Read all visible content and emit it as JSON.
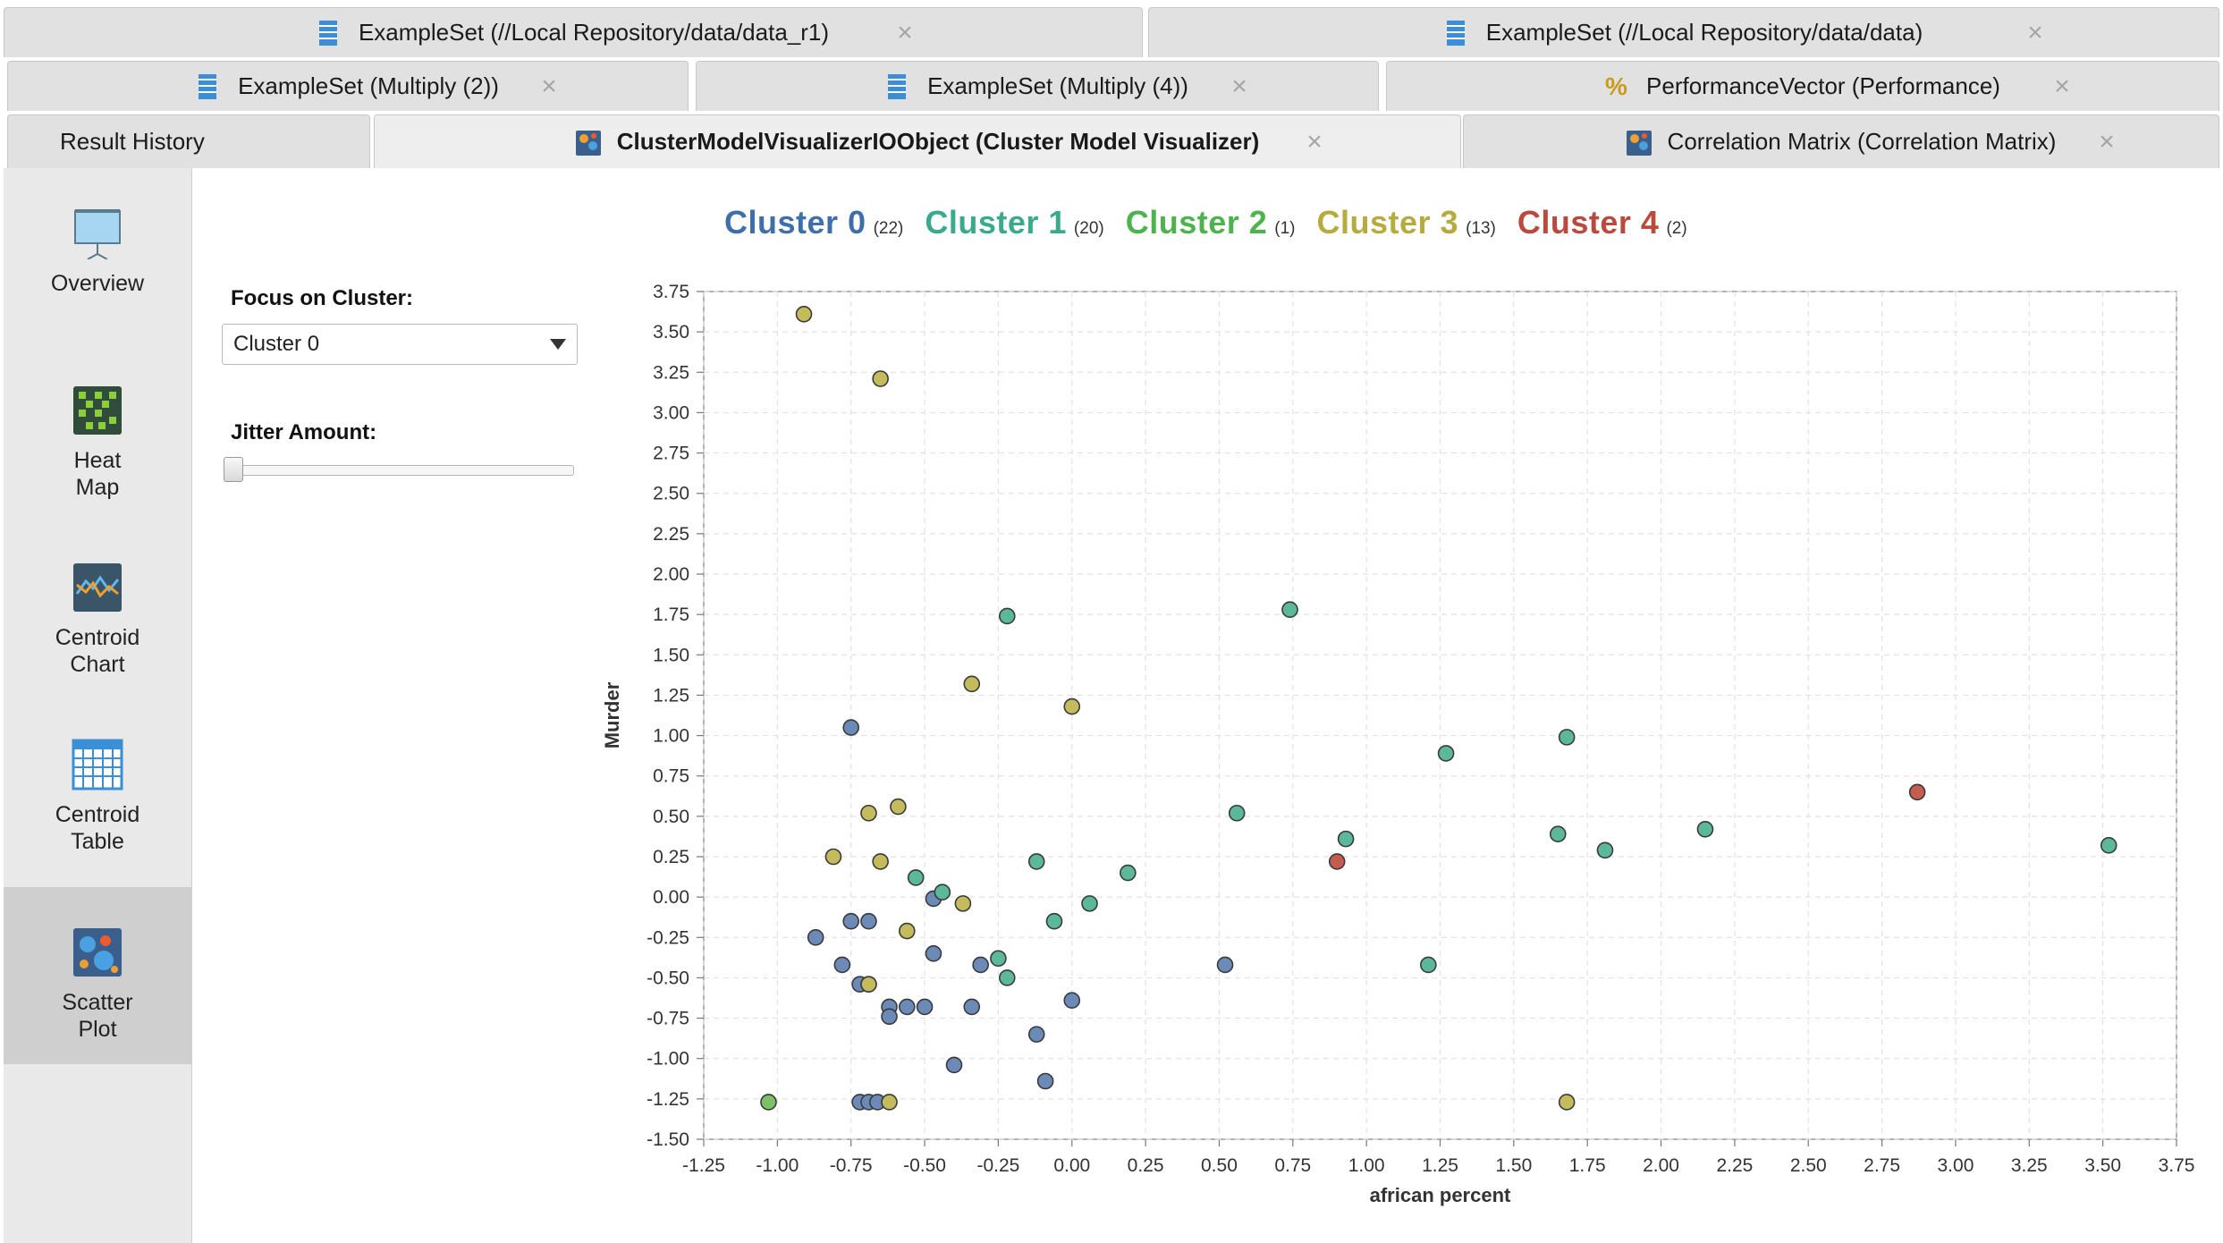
{
  "tabs": {
    "row1": [
      {
        "label": "ExampleSet (//Local Repository/data/data_r1)",
        "icon": "exampleset-icon",
        "close": "×"
      },
      {
        "label": "ExampleSet (//Local Repository/data/data)",
        "icon": "exampleset-icon",
        "close": "×"
      }
    ],
    "row2": [
      {
        "label": "ExampleSet (Multiply (2))",
        "icon": "exampleset-icon",
        "close": "×"
      },
      {
        "label": "ExampleSet (Multiply (4))",
        "icon": "exampleset-icon",
        "close": "×"
      },
      {
        "label": "PerformanceVector (Performance)",
        "icon": "percent-icon",
        "close": "×"
      }
    ],
    "row3": [
      {
        "label": "Result History"
      },
      {
        "label": "ClusterModelVisualizerIOObject (Cluster Model Visualizer)",
        "icon": "cluster-model-icon",
        "close": "×",
        "active": true
      },
      {
        "label": "Correlation Matrix (Correlation Matrix)",
        "icon": "correlation-matrix-icon",
        "close": "×"
      }
    ]
  },
  "sidebar": {
    "items": [
      {
        "label_line1": "Overview",
        "label_line2": "",
        "icon": "overview-icon"
      },
      {
        "label_line1": "Heat",
        "label_line2": "Map",
        "icon": "heat-map-icon"
      },
      {
        "label_line1": "Centroid",
        "label_line2": "Chart",
        "icon": "centroid-chart-icon"
      },
      {
        "label_line1": "Centroid",
        "label_line2": "Table",
        "icon": "centroid-table-icon"
      },
      {
        "label_line1": "Scatter",
        "label_line2": "Plot",
        "icon": "scatter-plot-icon",
        "active": true
      }
    ]
  },
  "controls": {
    "focus_label": "Focus on Cluster:",
    "focus_value": "Cluster 0",
    "jitter_label": "Jitter Amount:",
    "jitter_value": 0
  },
  "legend": [
    {
      "name": "Cluster 0",
      "count": "(22)",
      "color": "#3e6fa8"
    },
    {
      "name": "Cluster 1",
      "count": "(20)",
      "color": "#3aaa8c"
    },
    {
      "name": "Cluster 2",
      "count": "(1)",
      "color": "#4db34d"
    },
    {
      "name": "Cluster 3",
      "count": "(13)",
      "color": "#b5ab3f"
    },
    {
      "name": "Cluster 4",
      "count": "(2)",
      "color": "#b94a3d"
    }
  ],
  "chart_data": {
    "type": "scatter",
    "xlabel": "african percent",
    "ylabel": "Murder",
    "xlim": [
      -1.25,
      3.75
    ],
    "ylim": [
      -1.5,
      3.75
    ],
    "xticks": [
      "-1.25",
      "-1.00",
      "-0.75",
      "-0.50",
      "-0.25",
      "0.00",
      "0.25",
      "0.50",
      "0.75",
      "1.00",
      "1.25",
      "1.50",
      "1.75",
      "2.00",
      "2.25",
      "2.50",
      "2.75",
      "3.00",
      "3.25",
      "3.50",
      "3.75"
    ],
    "yticks": [
      "-1.50",
      "-1.25",
      "-1.00",
      "-0.75",
      "-0.50",
      "-0.25",
      "0.00",
      "0.25",
      "0.50",
      "0.75",
      "1.00",
      "1.25",
      "1.50",
      "1.75",
      "2.00",
      "2.25",
      "2.50",
      "2.75",
      "3.00",
      "3.25",
      "3.50",
      "3.75"
    ],
    "grid": true,
    "point_colors": {
      "Cluster 0": "#6b8ab8",
      "Cluster 1": "#5bb89a",
      "Cluster 2": "#7cc167",
      "Cluster 3": "#c4bc5c",
      "Cluster 4": "#c45c50"
    },
    "series": [
      {
        "name": "Cluster 0",
        "points": [
          [
            -0.75,
            1.05
          ],
          [
            -0.87,
            -0.25
          ],
          [
            -0.75,
            -0.15
          ],
          [
            -0.69,
            -0.15
          ],
          [
            -0.47,
            -0.01
          ],
          [
            -0.78,
            -0.42
          ],
          [
            -0.72,
            -0.54
          ],
          [
            -0.62,
            -0.68
          ],
          [
            -0.62,
            -0.74
          ],
          [
            -0.56,
            -0.68
          ],
          [
            -0.5,
            -0.68
          ],
          [
            -0.47,
            -0.35
          ],
          [
            -0.31,
            -0.42
          ],
          [
            -0.34,
            -0.68
          ],
          [
            -0.12,
            -0.85
          ],
          [
            -0.4,
            -1.04
          ],
          [
            -0.09,
            -1.14
          ],
          [
            0.52,
            -0.42
          ],
          [
            0.0,
            -0.64
          ],
          [
            -0.72,
            -1.27
          ],
          [
            -0.69,
            -1.27
          ],
          [
            -0.66,
            -1.27
          ]
        ]
      },
      {
        "name": "Cluster 1",
        "points": [
          [
            -0.22,
            1.74
          ],
          [
            0.74,
            1.78
          ],
          [
            1.27,
            0.89
          ],
          [
            1.68,
            0.99
          ],
          [
            0.56,
            0.52
          ],
          [
            0.93,
            0.36
          ],
          [
            1.65,
            0.39
          ],
          [
            1.81,
            0.29
          ],
          [
            2.15,
            0.42
          ],
          [
            3.52,
            0.32
          ],
          [
            -0.12,
            0.22
          ],
          [
            0.19,
            0.15
          ],
          [
            0.06,
            -0.04
          ],
          [
            -0.53,
            0.12
          ],
          [
            -0.44,
            0.03
          ],
          [
            -0.06,
            -0.15
          ],
          [
            -0.25,
            -0.38
          ],
          [
            -0.22,
            -0.5
          ],
          [
            1.21,
            -0.42
          ],
          [
            -0.69,
            -0.54
          ]
        ]
      },
      {
        "name": "Cluster 2",
        "points": [
          [
            -1.03,
            -1.27
          ]
        ]
      },
      {
        "name": "Cluster 3",
        "points": [
          [
            -0.91,
            3.61
          ],
          [
            -0.65,
            3.21
          ],
          [
            -0.34,
            1.32
          ],
          [
            0.0,
            1.18
          ],
          [
            -0.69,
            0.52
          ],
          [
            -0.59,
            0.56
          ],
          [
            -0.81,
            0.25
          ],
          [
            -0.65,
            0.22
          ],
          [
            -0.37,
            -0.04
          ],
          [
            -0.56,
            -0.21
          ],
          [
            -0.69,
            -0.54
          ],
          [
            -0.62,
            -1.27
          ],
          [
            1.68,
            -1.27
          ]
        ]
      },
      {
        "name": "Cluster 4",
        "points": [
          [
            2.87,
            0.65
          ],
          [
            0.9,
            0.22
          ]
        ]
      }
    ]
  }
}
